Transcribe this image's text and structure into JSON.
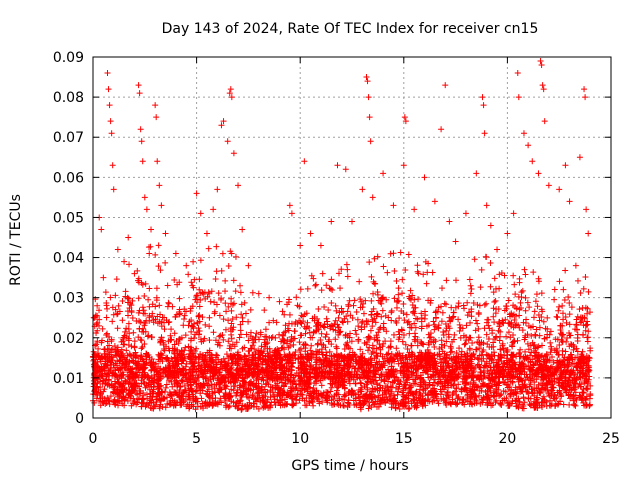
{
  "chart_data": {
    "type": "scatter",
    "title": "Day 143 of 2024, Rate Of TEC Index for receiver cn15",
    "xlabel": "GPS time / hours",
    "ylabel": "ROTI / TECUs",
    "xlim": [
      0,
      25
    ],
    "ylim": [
      0,
      0.09
    ],
    "xticks": [
      0,
      5,
      10,
      15,
      20,
      25
    ],
    "yticks": [
      0,
      0.01,
      0.02,
      0.03,
      0.04,
      0.05,
      0.06,
      0.07,
      0.08,
      0.09
    ],
    "grid": true,
    "marker": "plus",
    "color": "#ff0000",
    "x_range_data": [
      0,
      24
    ],
    "series": [
      {
        "name": "ROTI",
        "points": [
          [
            0.1,
            0.012
          ],
          [
            0.2,
            0.028
          ],
          [
            0.3,
            0.05
          ],
          [
            0.4,
            0.047
          ],
          [
            0.5,
            0.035
          ],
          [
            0.7,
            0.086
          ],
          [
            0.75,
            0.082
          ],
          [
            0.8,
            0.078
          ],
          [
            0.85,
            0.074
          ],
          [
            0.9,
            0.071
          ],
          [
            0.95,
            0.063
          ],
          [
            1.0,
            0.057
          ],
          [
            1.2,
            0.042
          ],
          [
            1.5,
            0.039
          ],
          [
            1.7,
            0.045
          ],
          [
            2.0,
            0.036
          ],
          [
            2.2,
            0.083
          ],
          [
            2.25,
            0.081
          ],
          [
            2.3,
            0.072
          ],
          [
            2.35,
            0.069
          ],
          [
            2.4,
            0.064
          ],
          [
            2.5,
            0.055
          ],
          [
            2.6,
            0.052
          ],
          [
            2.8,
            0.047
          ],
          [
            3.0,
            0.078
          ],
          [
            3.05,
            0.075
          ],
          [
            3.1,
            0.064
          ],
          [
            3.2,
            0.058
          ],
          [
            3.3,
            0.053
          ],
          [
            3.5,
            0.046
          ],
          [
            4.0,
            0.041
          ],
          [
            4.5,
            0.038
          ],
          [
            5.0,
            0.056
          ],
          [
            5.2,
            0.051
          ],
          [
            5.5,
            0.046
          ],
          [
            5.8,
            0.052
          ],
          [
            6.0,
            0.057
          ],
          [
            6.2,
            0.073
          ],
          [
            6.3,
            0.074
          ],
          [
            6.5,
            0.069
          ],
          [
            6.6,
            0.081
          ],
          [
            6.65,
            0.082
          ],
          [
            6.7,
            0.08
          ],
          [
            6.8,
            0.066
          ],
          [
            7.0,
            0.058
          ],
          [
            7.2,
            0.047
          ],
          [
            7.5,
            0.038
          ],
          [
            8.0,
            0.031
          ],
          [
            8.5,
            0.03
          ],
          [
            9.0,
            0.029
          ],
          [
            9.5,
            0.053
          ],
          [
            9.6,
            0.051
          ],
          [
            10.0,
            0.043
          ],
          [
            10.2,
            0.064
          ],
          [
            10.5,
            0.046
          ],
          [
            11.0,
            0.043
          ],
          [
            11.5,
            0.049
          ],
          [
            11.8,
            0.063
          ],
          [
            12.2,
            0.062
          ],
          [
            12.5,
            0.049
          ],
          [
            13.0,
            0.057
          ],
          [
            13.2,
            0.085
          ],
          [
            13.25,
            0.084
          ],
          [
            13.3,
            0.08
          ],
          [
            13.35,
            0.075
          ],
          [
            13.4,
            0.069
          ],
          [
            13.5,
            0.055
          ],
          [
            14.0,
            0.061
          ],
          [
            14.5,
            0.053
          ],
          [
            15.0,
            0.063
          ],
          [
            15.05,
            0.075
          ],
          [
            15.1,
            0.074
          ],
          [
            15.5,
            0.052
          ],
          [
            16.0,
            0.06
          ],
          [
            16.5,
            0.054
          ],
          [
            16.8,
            0.072
          ],
          [
            17.0,
            0.083
          ],
          [
            17.2,
            0.049
          ],
          [
            17.5,
            0.044
          ],
          [
            18.0,
            0.051
          ],
          [
            18.5,
            0.061
          ],
          [
            18.8,
            0.08
          ],
          [
            18.85,
            0.078
          ],
          [
            18.9,
            0.071
          ],
          [
            19.0,
            0.053
          ],
          [
            19.2,
            0.048
          ],
          [
            19.5,
            0.042
          ],
          [
            20.0,
            0.046
          ],
          [
            20.3,
            0.051
          ],
          [
            20.5,
            0.086
          ],
          [
            20.55,
            0.08
          ],
          [
            20.8,
            0.071
          ],
          [
            21.0,
            0.068
          ],
          [
            21.2,
            0.064
          ],
          [
            21.5,
            0.061
          ],
          [
            21.6,
            0.089
          ],
          [
            21.65,
            0.088
          ],
          [
            21.7,
            0.083
          ],
          [
            21.75,
            0.082
          ],
          [
            21.8,
            0.074
          ],
          [
            22.0,
            0.058
          ],
          [
            22.5,
            0.057
          ],
          [
            22.8,
            0.063
          ],
          [
            23.0,
            0.054
          ],
          [
            23.5,
            0.065
          ],
          [
            23.7,
            0.082
          ],
          [
            23.75,
            0.08
          ],
          [
            23.8,
            0.052
          ],
          [
            23.9,
            0.046
          ]
        ],
        "bulk_envelope": {
          "x": [
            0,
            1,
            2,
            3,
            4,
            5,
            6,
            7,
            8,
            9,
            10,
            11,
            12,
            13,
            14,
            15,
            16,
            17,
            18,
            19,
            20,
            21,
            22,
            23,
            24
          ],
          "y_upper": [
            0.035,
            0.042,
            0.04,
            0.045,
            0.036,
            0.04,
            0.045,
            0.04,
            0.028,
            0.027,
            0.034,
            0.037,
            0.038,
            0.04,
            0.041,
            0.042,
            0.04,
            0.039,
            0.038,
            0.042,
            0.036,
            0.043,
            0.034,
            0.038,
            0.04
          ],
          "y_lower": [
            0.003,
            0.003,
            0.003,
            0.002,
            0.003,
            0.002,
            0.003,
            0.002,
            0.002,
            0.003,
            0.003,
            0.003,
            0.003,
            0.002,
            0.003,
            0.002,
            0.003,
            0.003,
            0.003,
            0.003,
            0.003,
            0.002,
            0.003,
            0.003,
            0.003
          ],
          "y_typical": 0.01
        }
      }
    ]
  }
}
